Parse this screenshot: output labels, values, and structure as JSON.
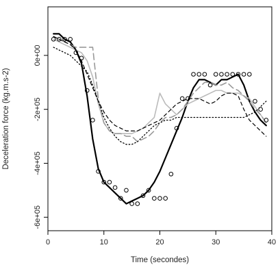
{
  "chart_data": {
    "type": "line",
    "title": "",
    "xlabel": "Time (secondes)",
    "ylabel": "Deceleration force (kg.m.s-2)",
    "xlim": [
      0,
      40
    ],
    "ylim": [
      -650000,
      180000
    ],
    "x_ticks": [
      0,
      10,
      20,
      30,
      40
    ],
    "x_tick_labels": [
      "0",
      "10",
      "20",
      "30",
      "40"
    ],
    "y_ticks": [
      0,
      -200000,
      -400000,
      -600000
    ],
    "y_tick_labels": [
      "0e+00",
      "-2e+05",
      "-4e+05",
      "-6e+05"
    ],
    "grid": false,
    "legend": "none",
    "points": {
      "style": "open-circle",
      "color": "#000000",
      "x": [
        1,
        2,
        3,
        4,
        5,
        6,
        7,
        8,
        9,
        10,
        11,
        12,
        13,
        14,
        15,
        16,
        17,
        18,
        19,
        20,
        21,
        22,
        23,
        24,
        25,
        26,
        27,
        28,
        29,
        30,
        31,
        32,
        33,
        34,
        35,
        36,
        37,
        38,
        39
      ],
      "y": [
        60000,
        60000,
        60000,
        60000,
        10000,
        -10000,
        -130000,
        -240000,
        -430000,
        -470000,
        -470000,
        -490000,
        -530000,
        -500000,
        -550000,
        -550000,
        -520000,
        -500000,
        -530000,
        -530000,
        -530000,
        -440000,
        -270000,
        -160000,
        -160000,
        -70000,
        -70000,
        -70000,
        -110000,
        -70000,
        -70000,
        -70000,
        -70000,
        -70000,
        -70000,
        -70000,
        -170000,
        -200000,
        -240000
      ]
    },
    "series": [
      {
        "style": "solid",
        "color": "#000000",
        "width": 2.2,
        "x": [
          1,
          2,
          3,
          4,
          5,
          6,
          7,
          8,
          9,
          10,
          11,
          12,
          13,
          14,
          15,
          16,
          17,
          18,
          19,
          20,
          21,
          22,
          23,
          24,
          25,
          26,
          27,
          28,
          29,
          30,
          31,
          32,
          33,
          34,
          35,
          36,
          37,
          38,
          39
        ],
        "y": [
          80000,
          80000,
          60000,
          50000,
          20000,
          -30000,
          -150000,
          -310000,
          -420000,
          -470000,
          -490000,
          -510000,
          -530000,
          -550000,
          -540000,
          -530000,
          -520000,
          -500000,
          -470000,
          -430000,
          -380000,
          -330000,
          -280000,
          -230000,
          -170000,
          -120000,
          -90000,
          -90000,
          -100000,
          -110000,
          -90000,
          -90000,
          -80000,
          -70000,
          -110000,
          -170000,
          -210000,
          -240000,
          -260000
        ]
      },
      {
        "style": "solid",
        "color": "#bbbbbb",
        "width": 1.6,
        "x": [
          1,
          2,
          3,
          4,
          5,
          6,
          7,
          8,
          9,
          10,
          11,
          12,
          13,
          14,
          15,
          16,
          17,
          18,
          19,
          20,
          21,
          22,
          23,
          24,
          25,
          26,
          27,
          28,
          29,
          30,
          31,
          32,
          33,
          34,
          35,
          36,
          37,
          38,
          39
        ],
        "y": [
          60000,
          50000,
          40000,
          30000,
          20000,
          10000,
          -20000,
          -80000,
          -180000,
          -250000,
          -280000,
          -290000,
          -290000,
          -290000,
          -290000,
          -280000,
          -270000,
          -250000,
          -230000,
          -140000,
          -180000,
          -200000,
          -220000,
          -200000,
          -180000,
          -170000,
          -160000,
          -150000,
          -140000,
          -130000,
          -130000,
          -140000,
          -140000,
          -140000,
          -150000,
          -160000,
          -190000,
          -220000,
          -250000
        ]
      },
      {
        "style": "longdash",
        "color": "#999999",
        "width": 1.6,
        "x": [
          1,
          2,
          3,
          4,
          5,
          6,
          7,
          8,
          9,
          10,
          11,
          12,
          13,
          14,
          15,
          16,
          17,
          18,
          19,
          20,
          21,
          22,
          23,
          24,
          25,
          26,
          27,
          28,
          29,
          30,
          31,
          32,
          33,
          34,
          35,
          36,
          37,
          38,
          39
        ],
        "y": [
          70000,
          60000,
          50000,
          40000,
          30000,
          30000,
          30000,
          30000,
          -160000,
          -250000,
          -280000,
          -290000,
          -290000,
          -300000,
          -300000,
          -320000,
          -310000,
          -300000,
          -280000,
          -250000,
          -230000,
          -230000,
          -220000,
          -200000,
          -170000,
          -140000,
          -120000,
          -100000,
          -100000,
          -110000,
          -110000,
          -100000,
          -120000,
          -130000,
          -150000,
          -170000,
          -200000,
          -220000,
          -250000
        ]
      },
      {
        "style": "dashed",
        "color": "#000000",
        "width": 1.2,
        "x": [
          1,
          2,
          3,
          4,
          5,
          6,
          7,
          8,
          9,
          10,
          11,
          12,
          13,
          14,
          15,
          16,
          17,
          18,
          19,
          20,
          21,
          22,
          23,
          24,
          25,
          26,
          27,
          28,
          29,
          30,
          31,
          32,
          33,
          34,
          35,
          36,
          37,
          38,
          39
        ],
        "y": [
          70000,
          60000,
          50000,
          40000,
          20000,
          -20000,
          -70000,
          -120000,
          -170000,
          -210000,
          -240000,
          -260000,
          -270000,
          -280000,
          -280000,
          -280000,
          -270000,
          -260000,
          -250000,
          -240000,
          -220000,
          -200000,
          -180000,
          -170000,
          -160000,
          -160000,
          -160000,
          -170000,
          -180000,
          -170000,
          -150000,
          -140000,
          -140000,
          -150000,
          -200000,
          -240000,
          -260000,
          -280000,
          -300000
        ]
      },
      {
        "style": "dotted",
        "color": "#000000",
        "width": 1.3,
        "x": [
          1,
          2,
          3,
          4,
          5,
          6,
          7,
          8,
          9,
          10,
          11,
          12,
          13,
          14,
          15,
          16,
          17,
          18,
          19,
          20,
          21,
          22,
          23,
          24,
          25,
          26,
          27,
          28,
          29,
          30,
          31,
          32,
          33,
          34,
          35,
          36,
          37,
          38,
          39
        ],
        "y": [
          30000,
          20000,
          10000,
          0,
          -20000,
          -40000,
          -60000,
          -110000,
          -170000,
          -230000,
          -270000,
          -300000,
          -320000,
          -330000,
          -330000,
          -320000,
          -300000,
          -280000,
          -260000,
          -250000,
          -240000,
          -240000,
          -230000,
          -230000,
          -230000,
          -230000,
          -230000,
          -230000,
          -230000,
          -230000,
          -230000,
          -230000,
          -230000,
          -230000,
          -230000,
          -220000,
          -210000,
          -190000,
          -170000
        ]
      }
    ]
  }
}
